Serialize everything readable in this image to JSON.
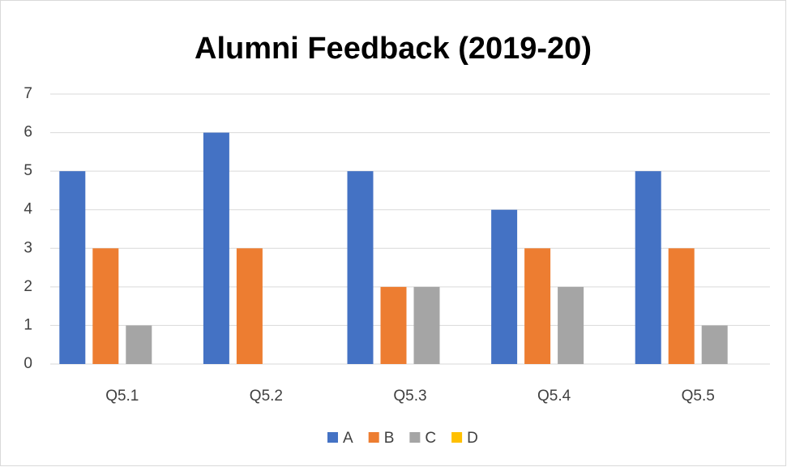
{
  "chart_data": {
    "type": "bar",
    "title": "Alumni Feedback (2019-20)",
    "categories": [
      "Q5.1",
      "Q5.2",
      "Q5.3",
      "Q5.4",
      "Q5.5"
    ],
    "series": [
      {
        "name": "A",
        "color": "#4472c4",
        "values": [
          5,
          6,
          5,
          4,
          5
        ]
      },
      {
        "name": "B",
        "color": "#ed7d31",
        "values": [
          3,
          3,
          2,
          3,
          3
        ]
      },
      {
        "name": "C",
        "color": "#a5a5a5",
        "values": [
          1,
          0,
          2,
          2,
          1
        ]
      },
      {
        "name": "D",
        "color": "#ffc000",
        "values": [
          0,
          0,
          0,
          0,
          0
        ]
      }
    ],
    "ylim": [
      0,
      7
    ],
    "yticks": [
      0,
      1,
      2,
      3,
      4,
      5,
      6,
      7
    ],
    "grid": true,
    "legend": "bottom"
  }
}
